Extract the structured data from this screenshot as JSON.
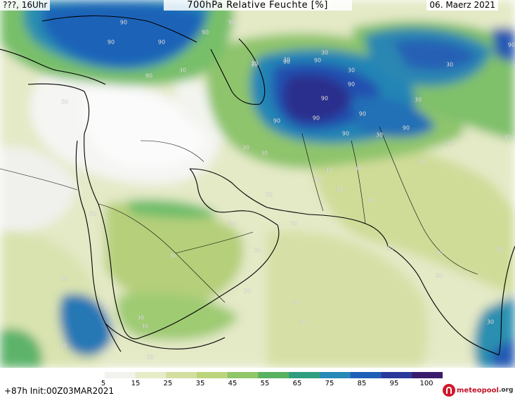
{
  "header": {
    "left": "???, 16Uhr",
    "title": "700hPa Relative Feuchte [%]",
    "date": "06. Maerz 2021"
  },
  "footer": {
    "init": "+87h Init:00Z03MAR2021",
    "logo_brand": "meteopool",
    "logo_suffix": ".org"
  },
  "colorbar": {
    "ticks": [
      "5",
      "15",
      "25",
      "35",
      "45",
      "55",
      "65",
      "75",
      "85",
      "95",
      "100"
    ],
    "colors": [
      "#ffffff",
      "#f2f2ee",
      "#e6ebc8",
      "#d2dfa0",
      "#bcd47c",
      "#8fc66a",
      "#59b25f",
      "#2f9e7e",
      "#2689b6",
      "#1f5fb8",
      "#2a3a9a",
      "#3b1c6c"
    ]
  },
  "contour_labels": {
    "values_30": "30",
    "values_90": "90",
    "count_30": 40,
    "count_90": 16
  }
}
